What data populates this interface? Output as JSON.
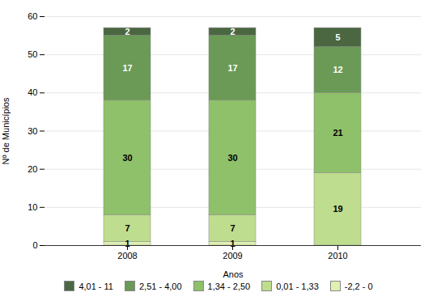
{
  "chart_data": {
    "type": "bar",
    "stacked": true,
    "categories": [
      "2008",
      "2009",
      "2010"
    ],
    "series": [
      {
        "name": "4,01 - 11",
        "color": "#4a6741",
        "values": [
          2,
          2,
          5
        ]
      },
      {
        "name": "2,51 - 4,00",
        "color": "#6a9a55",
        "values": [
          17,
          17,
          12
        ]
      },
      {
        "name": "1,34 - 2,50",
        "color": "#8fc06a",
        "values": [
          30,
          30,
          21
        ]
      },
      {
        "name": "0,01 - 1,33",
        "color": "#bedd8e",
        "values": [
          7,
          7,
          19
        ]
      },
      {
        "name": "-2,2 - 0",
        "color": "#dff0b0",
        "values": [
          1,
          1,
          0
        ]
      }
    ],
    "xlabel": "Anos",
    "ylabel": "Nº de Municípios",
    "ylim": [
      0,
      60
    ],
    "yticks": [
      0,
      10,
      20,
      30,
      40,
      50,
      60
    ],
    "grid": true,
    "data_labels": true,
    "legend": "bottom"
  }
}
